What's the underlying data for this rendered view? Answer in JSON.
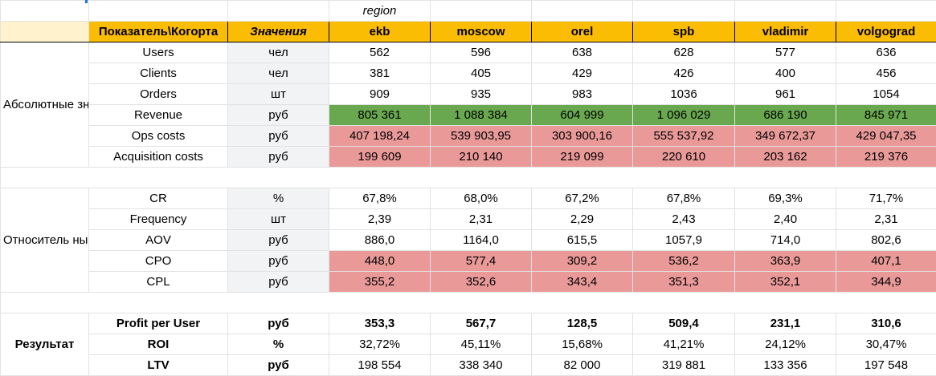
{
  "header": {
    "region_label": "region",
    "metric_col": "Показатель\\Когорта",
    "value_col": "Значения",
    "cities": [
      "ekb",
      "moscow",
      "orel",
      "spb",
      "vladimir",
      "volgograd"
    ]
  },
  "absolute": {
    "group_label": "Абсолютные значения",
    "rows": [
      {
        "name": "Users",
        "unit": "чел",
        "values": [
          "562",
          "596",
          "638",
          "628",
          "577",
          "636"
        ]
      },
      {
        "name": "Clients",
        "unit": "чел",
        "values": [
          "381",
          "405",
          "429",
          "426",
          "400",
          "456"
        ]
      },
      {
        "name": "Orders",
        "unit": "шт",
        "values": [
          "909",
          "935",
          "983",
          "1036",
          "961",
          "1054"
        ]
      },
      {
        "name": "Revenue",
        "unit": "руб",
        "values": [
          "805 361",
          "1 088 384",
          "604 999",
          "1 096 029",
          "686 190",
          "845 971"
        ]
      },
      {
        "name": "Ops costs",
        "unit": "руб",
        "values": [
          "407 198,24",
          "539 903,95",
          "303 900,16",
          "555 537,92",
          "349 672,37",
          "429 047,35"
        ]
      },
      {
        "name": "Acquisition costs",
        "unit": "руб",
        "values": [
          "199 609",
          "210 140",
          "219 099",
          "220 610",
          "203 162",
          "219 376"
        ]
      }
    ]
  },
  "relative": {
    "group_label": "Относитель ные значения",
    "rows": [
      {
        "name": "CR",
        "unit": "%",
        "values": [
          "67,8%",
          "68,0%",
          "67,2%",
          "67,8%",
          "69,3%",
          "71,7%"
        ]
      },
      {
        "name": "Frequency",
        "unit": "шт",
        "values": [
          "2,39",
          "2,31",
          "2,29",
          "2,43",
          "2,40",
          "2,31"
        ]
      },
      {
        "name": "AOV",
        "unit": "руб",
        "values": [
          "886,0",
          "1164,0",
          "615,5",
          "1057,9",
          "714,0",
          "802,6"
        ]
      },
      {
        "name": "CPO",
        "unit": "руб",
        "values": [
          "448,0",
          "577,4",
          "309,2",
          "536,2",
          "363,9",
          "407,1"
        ]
      },
      {
        "name": "CPL",
        "unit": "руб",
        "values": [
          "355,2",
          "352,6",
          "343,4",
          "351,3",
          "352,1",
          "344,9"
        ]
      }
    ]
  },
  "result": {
    "group_label": "Результат",
    "rows": [
      {
        "name": "Profit per User",
        "unit": "руб",
        "values": [
          "353,3",
          "567,7",
          "128,5",
          "509,4",
          "231,1",
          "310,6"
        ]
      },
      {
        "name": "ROI",
        "unit": "%",
        "values": [
          "32,72%",
          "45,11%",
          "15,68%",
          "41,21%",
          "24,12%",
          "30,47%"
        ]
      },
      {
        "name": "LTV",
        "unit": "руб",
        "values": [
          "198 554",
          "338 340",
          "82 000",
          "319 881",
          "133 356",
          "197 548"
        ]
      }
    ]
  },
  "colors": {
    "header_yellow": "#fbbc04",
    "header_pale": "#fff2cc",
    "positive_green": "#6aa84f",
    "cost_pink": "#ea9999"
  }
}
